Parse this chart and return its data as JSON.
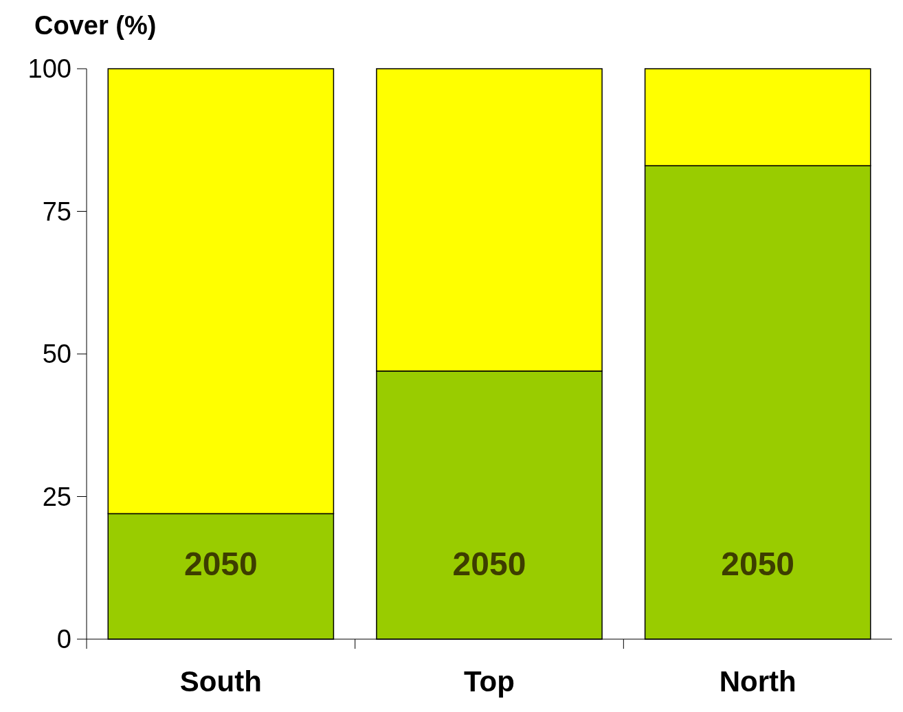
{
  "chart_data": {
    "type": "bar",
    "stacked": true,
    "ylabel": "Cover (%)",
    "categories": [
      "South",
      "Top",
      "North"
    ],
    "series": [
      {
        "color": "#99cc00",
        "values": [
          22,
          47,
          83
        ]
      },
      {
        "color": "#ffff00",
        "values": [
          78,
          53,
          17
        ]
      }
    ],
    "ylim": [
      0,
      100
    ],
    "yticks": [
      0,
      25,
      50,
      75,
      100
    ],
    "grid": false,
    "annotations": [
      "2050",
      "2050",
      "2050"
    ]
  }
}
